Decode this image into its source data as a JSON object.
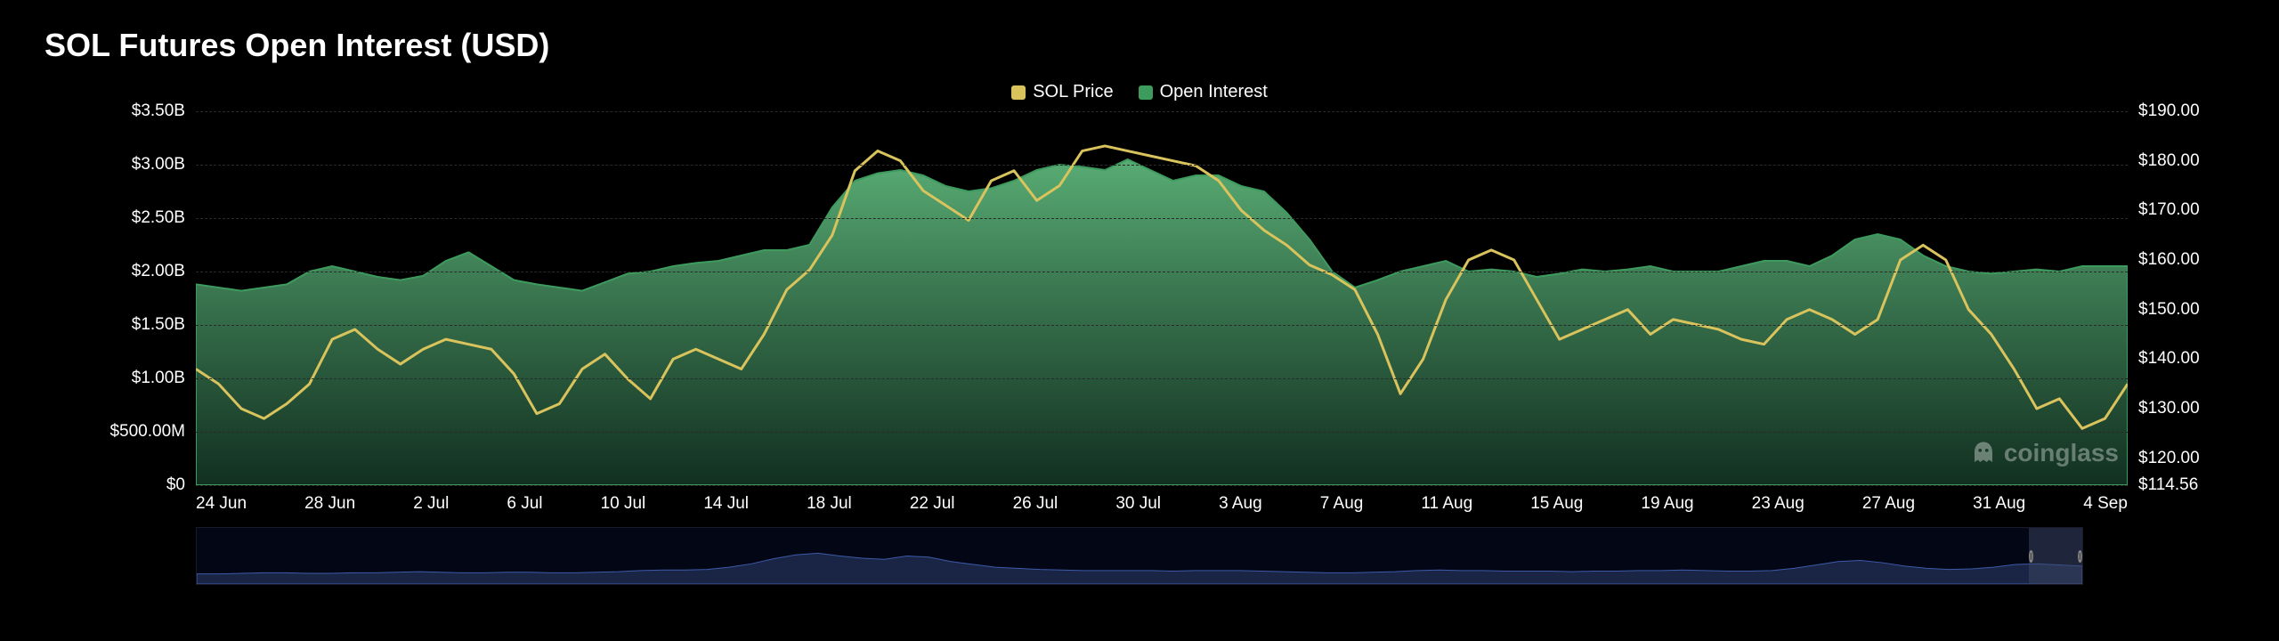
{
  "title": "SOL Futures Open Interest (USD)",
  "legend": [
    {
      "label": "SOL Price",
      "color": "#d9c35c"
    },
    {
      "label": "Open Interest",
      "color": "#3d9b5e"
    }
  ],
  "chart": {
    "type": "area+line",
    "background_color": "#000000",
    "grid_color": "#2a2a2a",
    "grid_dashed": true,
    "left_axis": {
      "label": "Open Interest",
      "min": 0,
      "max": 3.5,
      "unit": "B",
      "ticks": [
        {
          "v": 3.5,
          "label": "$3.50B"
        },
        {
          "v": 3.0,
          "label": "$3.00B"
        },
        {
          "v": 2.5,
          "label": "$2.50B"
        },
        {
          "v": 2.0,
          "label": "$2.00B"
        },
        {
          "v": 1.5,
          "label": "$1.50B"
        },
        {
          "v": 1.0,
          "label": "$1.00B"
        },
        {
          "v": 0.5,
          "label": "$500.00M"
        },
        {
          "v": 0.0,
          "label": "$0"
        }
      ]
    },
    "right_axis": {
      "label": "SOL Price",
      "min": 114.56,
      "max": 190,
      "ticks": [
        {
          "v": 190,
          "label": "$190.00"
        },
        {
          "v": 180,
          "label": "$180.00"
        },
        {
          "v": 170,
          "label": "$170.00"
        },
        {
          "v": 160,
          "label": "$160.00"
        },
        {
          "v": 150,
          "label": "$150.00"
        },
        {
          "v": 140,
          "label": "$140.00"
        },
        {
          "v": 130,
          "label": "$130.00"
        },
        {
          "v": 120,
          "label": "$120.00"
        },
        {
          "v": 114.56,
          "label": "$114.56"
        }
      ]
    },
    "x_ticks": [
      "24 Jun",
      "28 Jun",
      "2 Jul",
      "6 Jul",
      "10 Jul",
      "14 Jul",
      "18 Jul",
      "22 Jul",
      "26 Jul",
      "30 Jul",
      "3 Aug",
      "7 Aug",
      "11 Aug",
      "15 Aug",
      "19 Aug",
      "23 Aug",
      "27 Aug",
      "31 Aug",
      "4 Sep"
    ],
    "series_open_interest": {
      "color_top": "#5db57a",
      "color_bottom": "#153826",
      "stroke": "#3d9b5e",
      "stroke_width": 2,
      "values": [
        1.88,
        1.85,
        1.82,
        1.85,
        1.88,
        2.0,
        2.05,
        2.0,
        1.95,
        1.92,
        1.96,
        2.1,
        2.18,
        2.05,
        1.92,
        1.88,
        1.85,
        1.82,
        1.9,
        1.98,
        2.0,
        2.05,
        2.08,
        2.1,
        2.15,
        2.2,
        2.2,
        2.25,
        2.6,
        2.85,
        2.92,
        2.95,
        2.9,
        2.8,
        2.75,
        2.78,
        2.85,
        2.95,
        3.0,
        2.98,
        2.95,
        3.05,
        2.95,
        2.85,
        2.9,
        2.9,
        2.8,
        2.75,
        2.55,
        2.3,
        2.0,
        1.85,
        1.92,
        2.0,
        2.05,
        2.1,
        2.0,
        2.02,
        2.0,
        1.95,
        1.98,
        2.02,
        2.0,
        2.02,
        2.05,
        2.0,
        2.0,
        2.0,
        2.05,
        2.1,
        2.1,
        2.05,
        2.15,
        2.3,
        2.35,
        2.3,
        2.15,
        2.05,
        2.0,
        1.98,
        2.0,
        2.02,
        2.0,
        2.05,
        2.05,
        2.05
      ]
    },
    "series_price": {
      "color": "#d9c35c",
      "stroke_width": 3,
      "values": [
        138,
        135,
        130,
        128,
        131,
        135,
        144,
        146,
        142,
        139,
        142,
        144,
        143,
        142,
        137,
        129,
        131,
        138,
        141,
        136,
        132,
        140,
        142,
        140,
        138,
        145,
        154,
        158,
        165,
        178,
        182,
        180,
        174,
        171,
        168,
        176,
        178,
        172,
        175,
        182,
        183,
        182,
        181,
        180,
        179,
        176,
        170,
        166,
        163,
        159,
        157,
        154,
        145,
        133,
        140,
        152,
        160,
        162,
        160,
        152,
        144,
        146,
        148,
        150,
        145,
        148,
        147,
        146,
        144,
        143,
        148,
        150,
        148,
        145,
        148,
        160,
        163,
        160,
        150,
        145,
        138,
        130,
        132,
        126,
        128,
        135
      ]
    },
    "watermark": "coinglass"
  },
  "overview": {
    "stroke": "#3c5aa8",
    "fill": "#1a2545",
    "values": [
      0.18,
      0.18,
      0.19,
      0.2,
      0.2,
      0.19,
      0.19,
      0.2,
      0.2,
      0.21,
      0.22,
      0.21,
      0.2,
      0.2,
      0.21,
      0.21,
      0.2,
      0.2,
      0.21,
      0.22,
      0.24,
      0.25,
      0.25,
      0.26,
      0.3,
      0.36,
      0.45,
      0.52,
      0.55,
      0.5,
      0.46,
      0.44,
      0.5,
      0.48,
      0.4,
      0.35,
      0.3,
      0.28,
      0.26,
      0.25,
      0.24,
      0.24,
      0.24,
      0.24,
      0.23,
      0.24,
      0.24,
      0.24,
      0.23,
      0.22,
      0.21,
      0.2,
      0.2,
      0.21,
      0.22,
      0.24,
      0.25,
      0.24,
      0.24,
      0.23,
      0.23,
      0.23,
      0.22,
      0.23,
      0.23,
      0.24,
      0.24,
      0.25,
      0.24,
      0.23,
      0.23,
      0.24,
      0.28,
      0.34,
      0.4,
      0.42,
      0.38,
      0.32,
      0.28,
      0.26,
      0.27,
      0.3,
      0.35,
      0.36,
      0.34,
      0.32
    ],
    "handle_visible": "right"
  }
}
